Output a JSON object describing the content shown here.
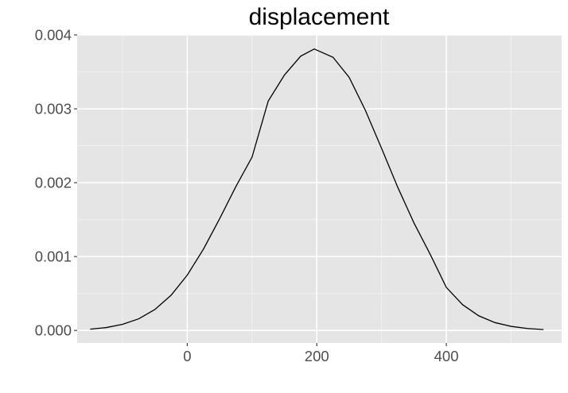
{
  "chart_data": {
    "type": "line",
    "title": "displacement",
    "xlabel": "",
    "ylabel": "",
    "xlim": [
      -170,
      578
    ],
    "ylim": [
      -0.00017,
      0.004
    ],
    "x_ticks": [
      0,
      200,
      400
    ],
    "x_tick_labels": [
      "0",
      "200",
      "400"
    ],
    "x_minor_ticks": [
      -100,
      100,
      300,
      500
    ],
    "y_ticks": [
      0,
      0.001,
      0.002,
      0.003,
      0.004
    ],
    "y_tick_labels": [
      "0.000",
      "0.001",
      "0.002",
      "0.003",
      "0.004"
    ],
    "y_minor_ticks": [
      0.0005,
      0.0015,
      0.0025,
      0.0035
    ],
    "grid": true,
    "legend": "none",
    "series": [
      {
        "x": [
          -150,
          -125,
          -100,
          -75,
          -50,
          -25,
          0,
          25,
          50,
          75,
          100,
          125,
          150,
          175,
          196,
          225,
          250,
          275,
          300,
          325,
          350,
          375,
          400,
          425,
          450,
          475,
          500,
          525,
          550
        ],
        "y": [
          1.7e-05,
          3.9e-05,
          8.2e-05,
          0.000157,
          0.000283,
          0.000476,
          0.000749,
          0.001101,
          0.001513,
          0.001947,
          0.002346,
          0.003105,
          0.003457,
          0.003712,
          0.00381,
          0.003698,
          0.003425,
          0.002979,
          0.002465,
          0.001937,
          0.001455,
          0.001032,
          0.000582,
          0.000349,
          0.000198,
          0.000106,
          5.5e-05,
          2.6e-05,
          1.1e-05
        ]
      }
    ],
    "colors": {
      "panel": "#e5e5e5",
      "grid_major": "#ffffff",
      "grid_minor": "#f2f2f2",
      "line": "#000000",
      "tick_mark": "#333333",
      "tick_label": "#4d4d4d"
    }
  }
}
